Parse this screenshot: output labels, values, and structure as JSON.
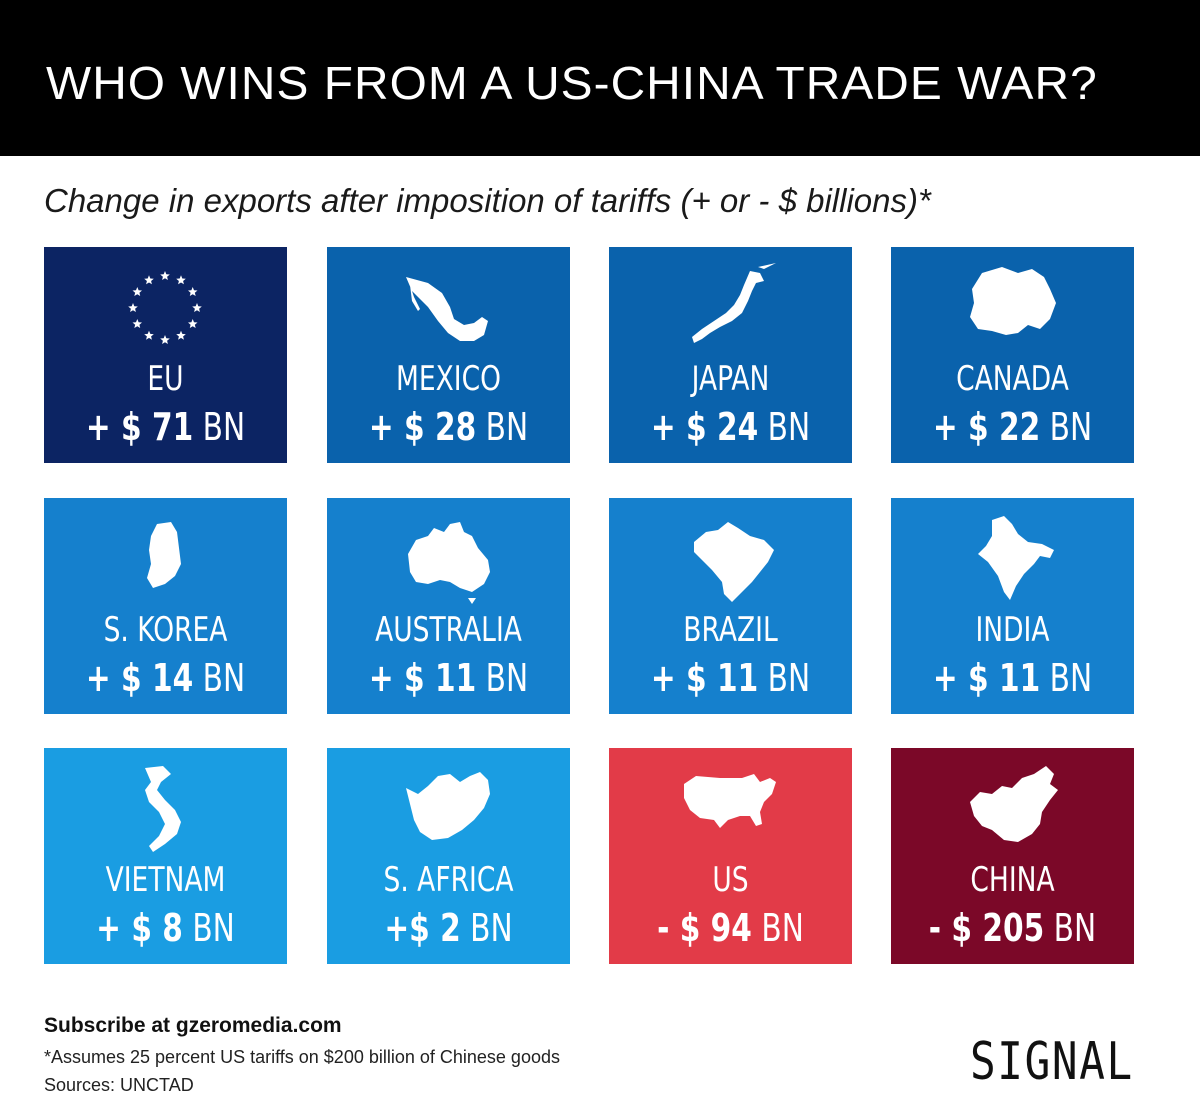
{
  "header": {
    "title": "WHO WINS FROM A US-CHINA TRADE WAR?",
    "subtitle": "Change in exports after imposition of tariffs (+ or - $ billions)*"
  },
  "chart_data": {
    "type": "table",
    "title": "WHO WINS FROM A US-CHINA TRADE WAR?",
    "subtitle": "Change in exports after imposition of tariffs (+ or - $ billions)*",
    "categories": [
      "EU",
      "MEXICO",
      "JAPAN",
      "CANADA",
      "S. KOREA",
      "AUSTRALIA",
      "BRAZIL",
      "INDIA",
      "VIETNAM",
      "S. AFRICA",
      "US",
      "CHINA"
    ],
    "values": [
      71,
      28,
      24,
      22,
      14,
      11,
      11,
      11,
      8,
      2,
      -94,
      -205
    ],
    "tiles": [
      {
        "name": "EU",
        "amount": "+ $ 71",
        "unit": "BN",
        "color": "#0c2463",
        "icon": "eu-stars-icon"
      },
      {
        "name": "MEXICO",
        "amount": "+ $ 28",
        "unit": "BN",
        "color": "#0a62ac",
        "icon": "mexico-map-icon"
      },
      {
        "name": "JAPAN",
        "amount": "+ $ 24",
        "unit": "BN",
        "color": "#0a62ac",
        "icon": "japan-map-icon"
      },
      {
        "name": "CANADA",
        "amount": "+ $ 22",
        "unit": "BN",
        "color": "#0a62ac",
        "icon": "canada-map-icon"
      },
      {
        "name": "S. KOREA",
        "amount": "+ $ 14",
        "unit": "BN",
        "color": "#1580cd",
        "icon": "south-korea-map-icon"
      },
      {
        "name": "AUSTRALIA",
        "amount": "+ $ 11",
        "unit": "BN",
        "color": "#1580cd",
        "icon": "australia-map-icon"
      },
      {
        "name": "BRAZIL",
        "amount": "+ $ 11",
        "unit": "BN",
        "color": "#1580cd",
        "icon": "brazil-map-icon"
      },
      {
        "name": "INDIA",
        "amount": "+ $ 11",
        "unit": "BN",
        "color": "#1580cd",
        "icon": "india-map-icon"
      },
      {
        "name": "VIETNAM",
        "amount": "+ $ 8",
        "unit": "BN",
        "color": "#1a9de2",
        "icon": "vietnam-map-icon"
      },
      {
        "name": "S. AFRICA",
        "amount": "+$ 2",
        "unit": "BN",
        "color": "#1a9de2",
        "icon": "south-africa-map-icon"
      },
      {
        "name": "US",
        "amount": "- $ 94",
        "unit": "BN",
        "color": "#e23b48",
        "icon": "usa-map-icon"
      },
      {
        "name": "CHINA",
        "amount": "- $ 205",
        "unit": "BN",
        "color": "#7b0828",
        "icon": "china-map-icon"
      }
    ]
  },
  "footer": {
    "subscribe": "Subscribe at gzeromedia.com",
    "footnote": "*Assumes 25 percent US tariffs on $200 billion of Chinese goods",
    "sources": "Sources: UNCTAD",
    "brand": "SIGNAL"
  }
}
